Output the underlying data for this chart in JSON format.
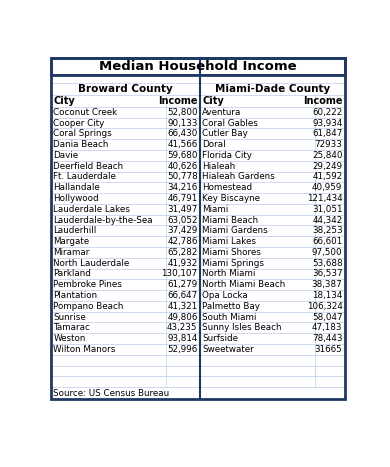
{
  "title": "Median Household Income",
  "broward_header": "Broward County",
  "miami_header": "Miami-Dade County",
  "col_header_city": "City",
  "col_header_income": "Income",
  "broward": [
    [
      "Coconut Creek",
      "52,800"
    ],
    [
      "Cooper City",
      "90,133"
    ],
    [
      "Coral Springs",
      "66,430"
    ],
    [
      "Dania Beach",
      "41,566"
    ],
    [
      "Davie",
      "59,680"
    ],
    [
      "Deerfield Beach",
      "40,626"
    ],
    [
      "Ft. Lauderdale",
      "50,778"
    ],
    [
      "Hallandale",
      "34,216"
    ],
    [
      "Hollywood",
      "46,791"
    ],
    [
      "Lauderdale Lakes",
      "31,497"
    ],
    [
      "Lauderdale-by-the-Sea",
      "63,052"
    ],
    [
      "Lauderhill",
      "37,429"
    ],
    [
      "Margate",
      "42,786"
    ],
    [
      "Miramar",
      "65,282"
    ],
    [
      "North Lauderdale",
      "41,932"
    ],
    [
      "Parkland",
      "130,107"
    ],
    [
      "Pembroke Pines",
      "61,279"
    ],
    [
      "Plantation",
      "66,647"
    ],
    [
      "Pompano Beach",
      "41,321"
    ],
    [
      "Sunrise",
      "49,806"
    ],
    [
      "Tamarac",
      "43,235"
    ],
    [
      "Weston",
      "93,814"
    ],
    [
      "Wilton Manors",
      "52,996"
    ]
  ],
  "miami": [
    [
      "Aventura",
      "60,222"
    ],
    [
      "Coral Gables",
      "93,934"
    ],
    [
      "Cutler Bay",
      "61,847"
    ],
    [
      "Doral",
      "72933"
    ],
    [
      "Florida City",
      "25,840"
    ],
    [
      "Hialeah",
      "29,249"
    ],
    [
      "Hialeah Gardens",
      "41,592"
    ],
    [
      "Homestead",
      "40,959"
    ],
    [
      "Key Biscayne",
      "121,434"
    ],
    [
      "Miami",
      "31,051"
    ],
    [
      "Miami Beach",
      "44,342"
    ],
    [
      "Miami Gardens",
      "38,253"
    ],
    [
      "Miami Lakes",
      "66,601"
    ],
    [
      "Miami Shores",
      "97,500"
    ],
    [
      "Miami Springs",
      "53,688"
    ],
    [
      "North Miami",
      "36,537"
    ],
    [
      "North Miami Beach",
      "38,387"
    ],
    [
      "Opa Locka",
      "18,134"
    ],
    [
      "Palmetto Bay",
      "106,324"
    ],
    [
      "South Miami",
      "58,047"
    ],
    [
      "Sunny Isles Beach",
      "47,183"
    ],
    [
      "Surfside",
      "78,443"
    ],
    [
      "Sweetwater",
      "31665"
    ]
  ],
  "source": "Source: US Census Bureau",
  "title_bg": "#ffffff",
  "title_color": "#000000",
  "border_color": "#1f3864",
  "cell_border": "#b8cce4",
  "extra_rows": 3
}
